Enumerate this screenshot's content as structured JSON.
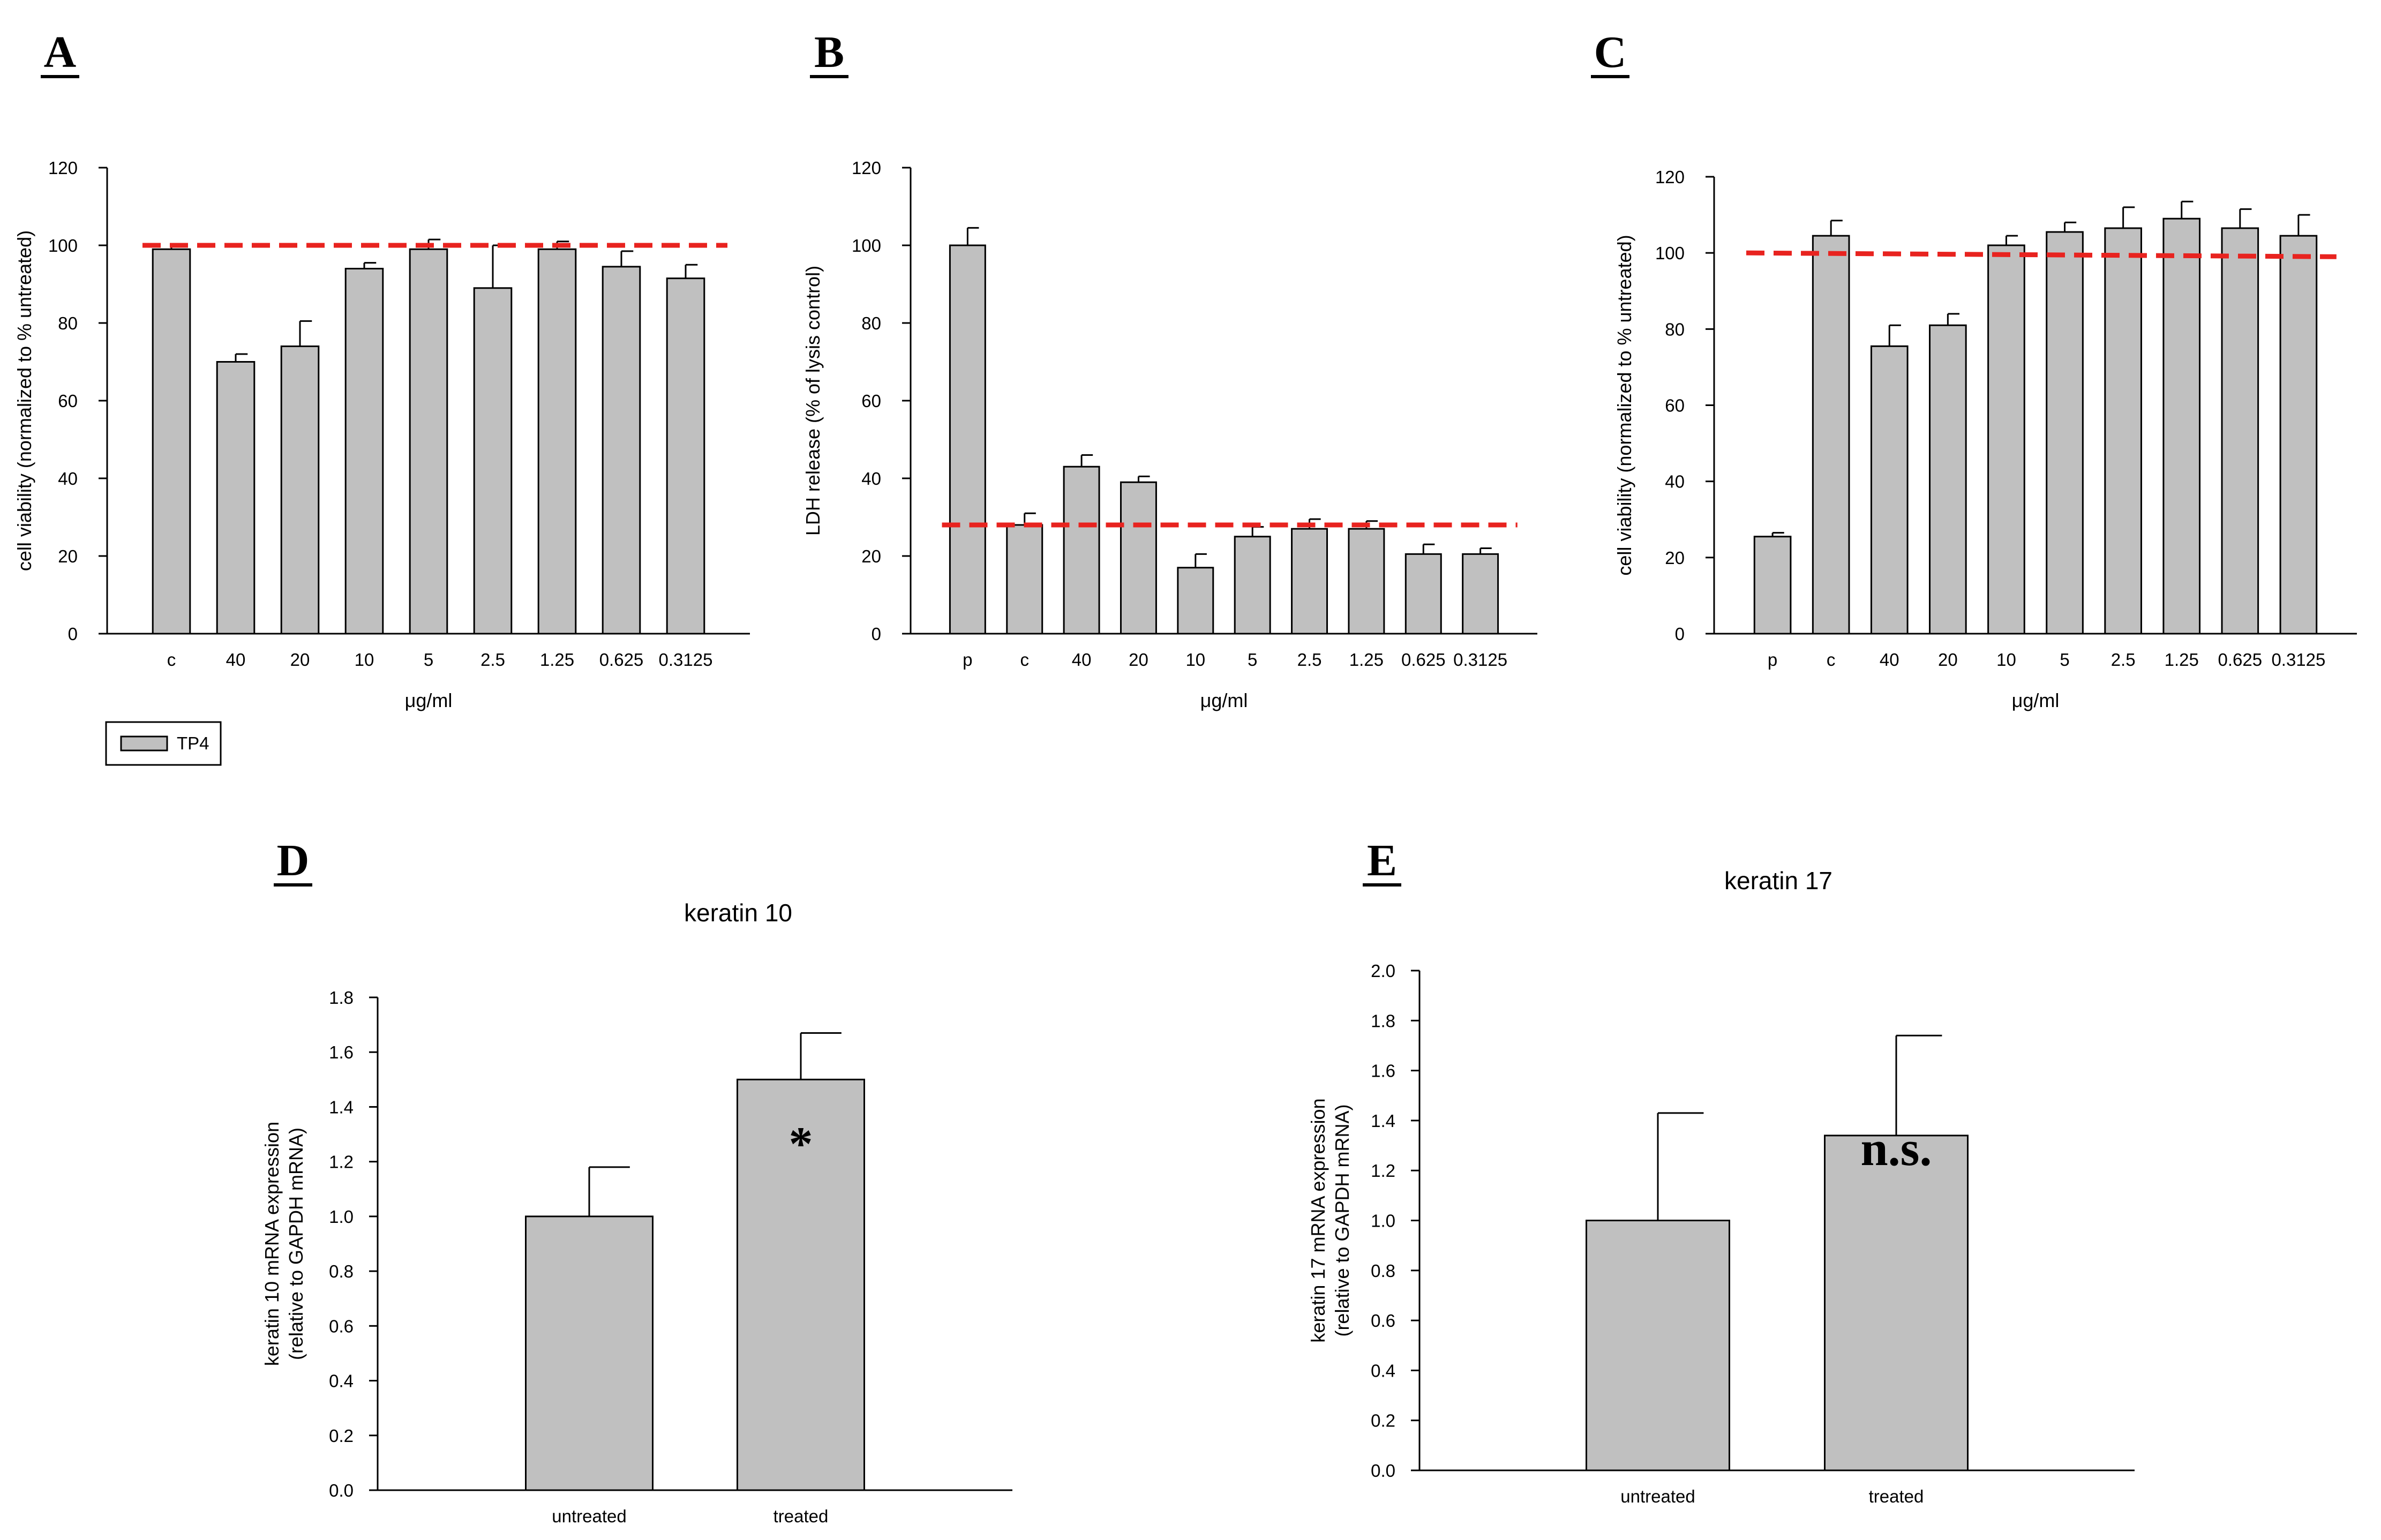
{
  "colors": {
    "bar_fill": "#c0c0c0",
    "bar_stroke": "#000000",
    "reference_line": "#e8231f",
    "error_bar": "#000000"
  },
  "chart_data": [
    {
      "panel": "A",
      "type": "bar",
      "title": "",
      "xlabel": "μg/ml",
      "ylabel": "cell viability (normalized to % untreated)",
      "ylim": [
        0,
        120
      ],
      "yticks": [
        "0",
        "20",
        "40",
        "60",
        "80",
        "100",
        "120"
      ],
      "categories": [
        "c",
        "40",
        "20",
        "10",
        "5",
        "2.5",
        "1.25",
        "0.625",
        "0.3125"
      ],
      "series": [
        {
          "name": "TP4",
          "values": [
            99,
            70,
            74,
            94,
            99,
            89,
            99,
            94.5,
            91.5
          ],
          "errors": [
            1,
            2,
            6.5,
            1.5,
            2.5,
            11,
            2,
            4,
            3.5
          ]
        }
      ],
      "reference_line": {
        "y": 100,
        "style": "dashed"
      },
      "legend": {
        "entries": [
          "TP4"
        ],
        "position": "bottom-left"
      }
    },
    {
      "panel": "B",
      "type": "bar",
      "title": "",
      "xlabel": "μg/ml",
      "ylabel": "LDH release (% of lysis control)",
      "ylim": [
        0,
        120
      ],
      "yticks": [
        "0",
        "20",
        "40",
        "60",
        "80",
        "100",
        "120"
      ],
      "categories": [
        "p",
        "c",
        "40",
        "20",
        "10",
        "5",
        "2.5",
        "1.25",
        "0.625",
        "0.3125"
      ],
      "series": [
        {
          "name": "TP4",
          "values": [
            100,
            28,
            43,
            39,
            17,
            25,
            27,
            27,
            20.5,
            20.5
          ],
          "errors": [
            4.5,
            3,
            3,
            1.5,
            3.5,
            2.5,
            2.5,
            2,
            2.5,
            1.5
          ]
        }
      ],
      "reference_line": {
        "y": 28,
        "style": "dashed"
      }
    },
    {
      "panel": "C",
      "type": "bar",
      "title": "",
      "xlabel": "μg/ml",
      "ylabel": "cell viability (normalized to % untreated)",
      "ylim": [
        0,
        120
      ],
      "yticks": [
        "0",
        "20",
        "40",
        "60",
        "80",
        "100",
        "120"
      ],
      "categories": [
        "p",
        "c",
        "40",
        "20",
        "10",
        "5",
        "2.5",
        "1.25",
        "0.625",
        "0.3125"
      ],
      "series": [
        {
          "name": "TP4",
          "values": [
            25.5,
            104.5,
            75.5,
            81,
            102,
            105.5,
            106.5,
            109,
            106.5,
            104.5
          ],
          "errors": [
            1,
            4,
            5.5,
            3,
            2.5,
            2.5,
            5.5,
            4.5,
            5,
            5.5
          ]
        }
      ],
      "reference_line": {
        "y_start": 100,
        "y_end": 99,
        "style": "dashed"
      }
    },
    {
      "panel": "D",
      "type": "bar",
      "title": "keratin 10",
      "xlabel": "",
      "ylabel": [
        "keratin 10 mRNA expression",
        "(relative to GAPDH mRNA)"
      ],
      "ylim": [
        0,
        1.8
      ],
      "yticks": [
        "0.0",
        "0.2",
        "0.4",
        "0.6",
        "0.8",
        "1.0",
        "1.2",
        "1.4",
        "1.6",
        "1.8"
      ],
      "categories": [
        "untreated",
        "treated"
      ],
      "series": [
        {
          "name": "keratin 10",
          "values": [
            1.0,
            1.5
          ],
          "errors": [
            0.18,
            0.17
          ]
        }
      ],
      "annotations": [
        {
          "category": "treated",
          "text": "*"
        }
      ]
    },
    {
      "panel": "E",
      "type": "bar",
      "title": "keratin 17",
      "xlabel": "",
      "ylabel": [
        "keratin 17 mRNA expression",
        "(relative to GAPDH mRNA)"
      ],
      "ylim": [
        0,
        2.0
      ],
      "yticks": [
        "0.0",
        "0.2",
        "0.4",
        "0.6",
        "0.8",
        "1.0",
        "1.2",
        "1.4",
        "1.6",
        "1.8",
        "2.0"
      ],
      "categories": [
        "untreated",
        "treated"
      ],
      "series": [
        {
          "name": "keratin 17",
          "values": [
            1.0,
            1.34
          ],
          "errors": [
            0.43,
            0.4
          ]
        }
      ],
      "annotations": [
        {
          "category": "treated",
          "text": "n.s."
        }
      ]
    }
  ]
}
